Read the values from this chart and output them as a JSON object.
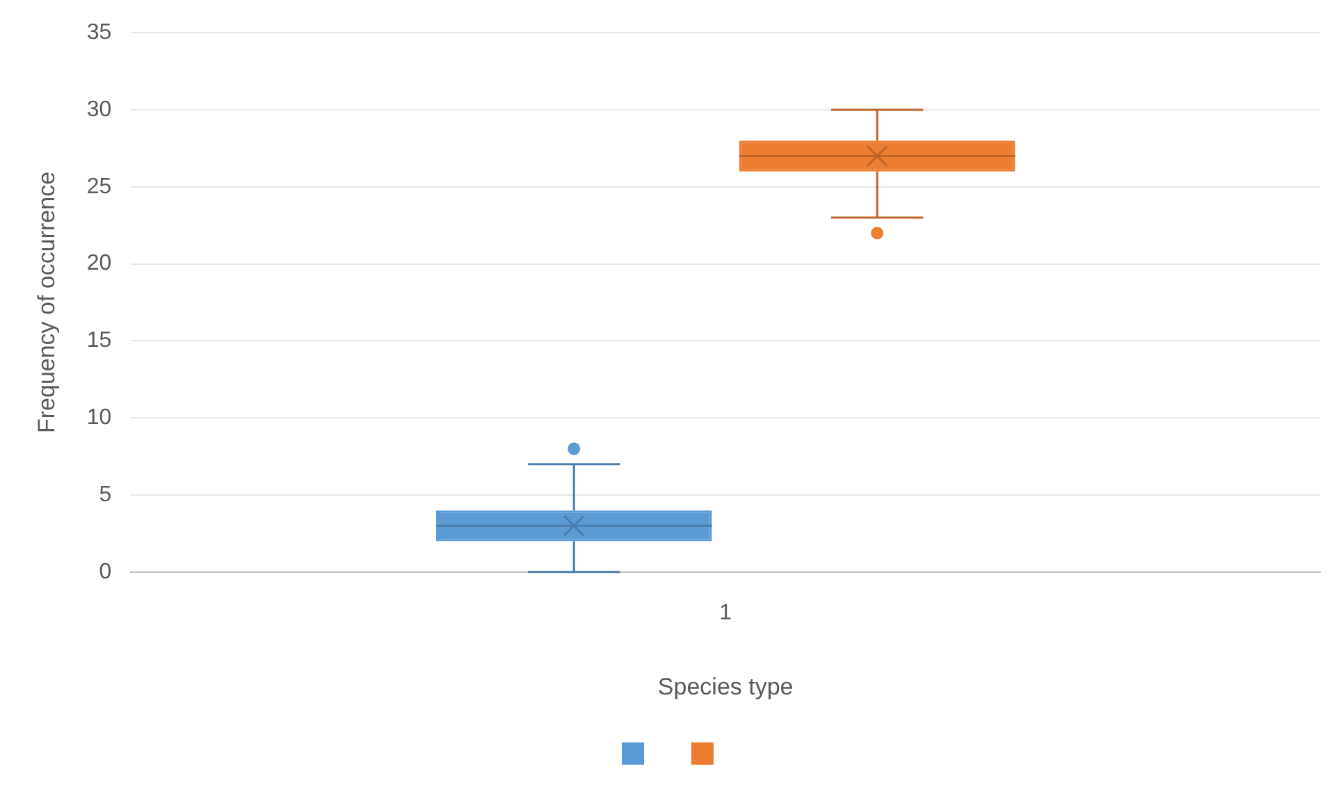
{
  "chart_data": {
    "type": "box",
    "xlabel": "Species type",
    "ylabel": "Frequency of occurrence",
    "categories": [
      "1"
    ],
    "ylim": [
      0,
      35
    ],
    "yticks": [
      0,
      5,
      10,
      15,
      20,
      25,
      30,
      35
    ],
    "grid": "y",
    "series": [
      {
        "color": "#5b9bd5",
        "boxes": [
          {
            "low": 0,
            "q1": 2,
            "median": 3,
            "q3": 4,
            "high": 7,
            "mean": 3,
            "outliers": [
              8
            ]
          }
        ]
      },
      {
        "color": "#ed7d31",
        "boxes": [
          {
            "low": 23,
            "q1": 26,
            "median": 27,
            "q3": 28,
            "high": 30,
            "mean": 27,
            "outliers": [
              22
            ]
          }
        ]
      }
    ]
  }
}
